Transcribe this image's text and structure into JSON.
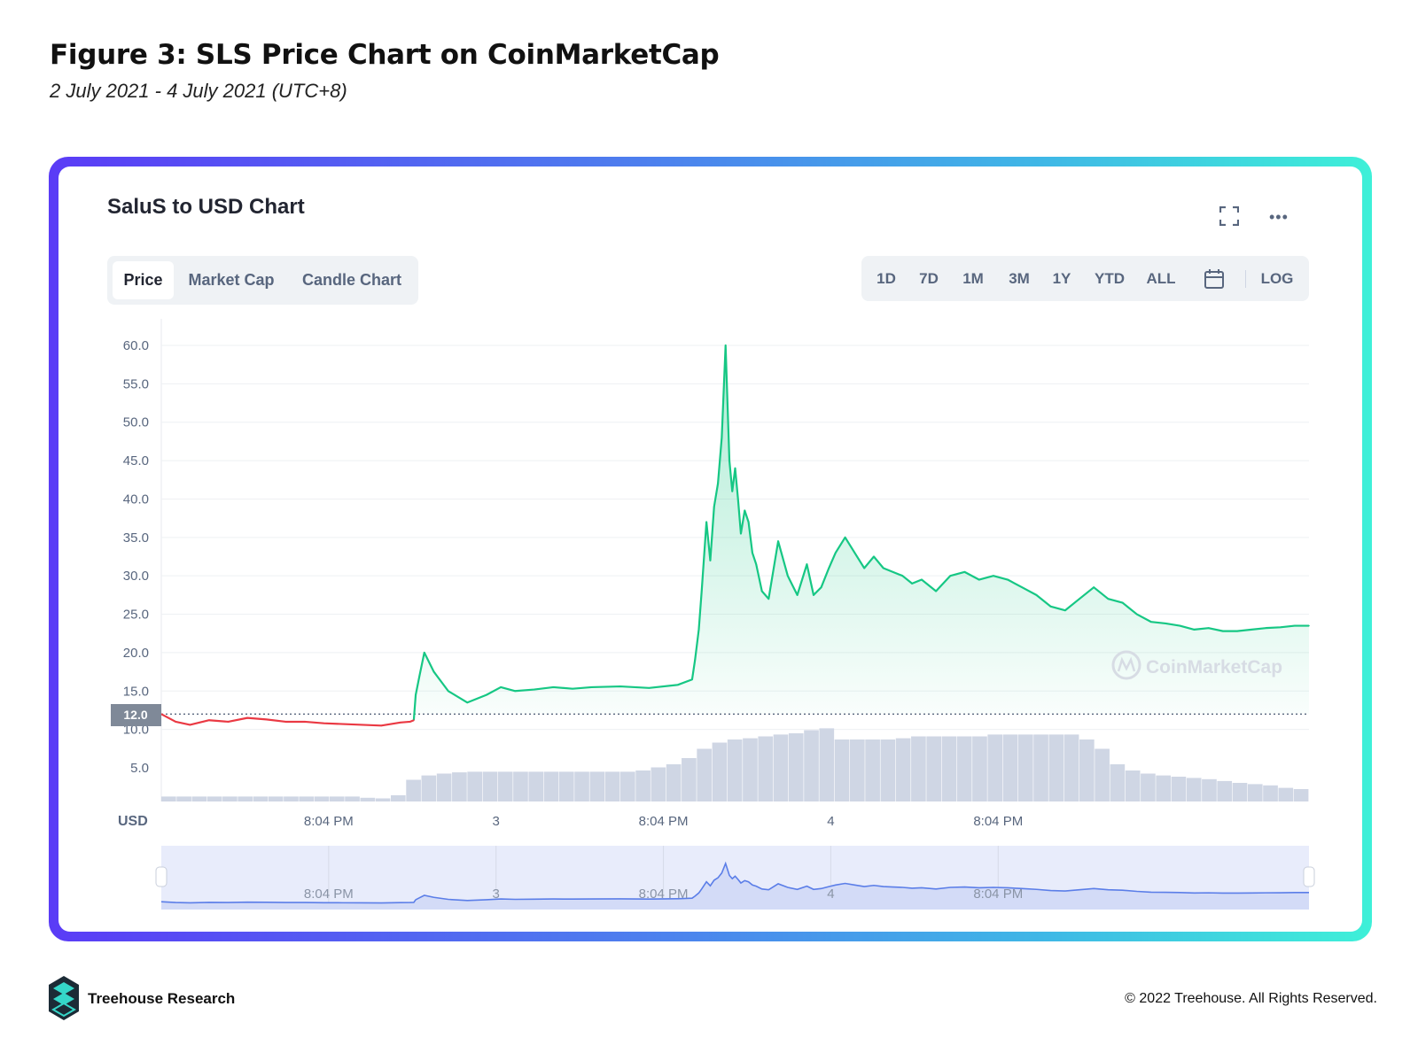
{
  "figure": {
    "title": "Figure 3: SLS Price Chart on CoinMarketCap",
    "subtitle": "2 July 2021 - 4 July 2021 (UTC+8)"
  },
  "panel": {
    "title": "SaluS to USD Chart",
    "expand_icon": "expand-icon",
    "more_icon": "more-icon",
    "tabs": [
      {
        "label": "Price",
        "active": true
      },
      {
        "label": "Market Cap",
        "active": false
      },
      {
        "label": "Candle Chart",
        "active": false
      }
    ],
    "ranges": [
      "1D",
      "7D",
      "1M",
      "3M",
      "1Y",
      "YTD",
      "ALL"
    ],
    "calendar_icon": "calendar-icon",
    "log_label": "LOG"
  },
  "colors": {
    "up": "#16c784",
    "down": "#ea3943",
    "volume": "#cfd6e4",
    "navigator": "#5b7ee8",
    "frame_start": "#5a3cf6",
    "frame_end": "#3ef0d8"
  },
  "chart_data": {
    "type": "line",
    "unit_label": "USD",
    "ylim": [
      0,
      62
    ],
    "yticks": [
      "5.0",
      "10.0",
      "15.0",
      "20.0",
      "25.0",
      "30.0",
      "35.0",
      "40.0",
      "45.0",
      "50.0",
      "55.0",
      "60.0"
    ],
    "xtick_labels": [
      "8:04 PM",
      "3",
      "8:04 PM",
      "4",
      "8:04 PM"
    ],
    "reference_price": "12.0",
    "watermark": "CoinMarketCap",
    "price_series": {
      "x": [
        0,
        0.15,
        0.3,
        0.5,
        0.7,
        0.9,
        1.1,
        1.3,
        1.5,
        1.7,
        1.9,
        2.1,
        2.3,
        2.5,
        2.6,
        2.64,
        2.66,
        2.7,
        2.75,
        2.85,
        3.0,
        3.2,
        3.4,
        3.55,
        3.7,
        3.9,
        4.1,
        4.3,
        4.5,
        4.8,
        5.1,
        5.4,
        5.55,
        5.58,
        5.62,
        5.65,
        5.7,
        5.74,
        5.78,
        5.82,
        5.86,
        5.9,
        5.94,
        5.97,
        6.0,
        6.03,
        6.06,
        6.1,
        6.14,
        6.18,
        6.22,
        6.28,
        6.35,
        6.45,
        6.55,
        6.65,
        6.75,
        6.82,
        6.9,
        6.98,
        7.05,
        7.15,
        7.25,
        7.35,
        7.45,
        7.55,
        7.65,
        7.75,
        7.85,
        7.95,
        8.1,
        8.25,
        8.4,
        8.55,
        8.7,
        8.85,
        9.0,
        9.15,
        9.3,
        9.45,
        9.6,
        9.75,
        9.9,
        10.05,
        10.2,
        10.35,
        10.5,
        10.65,
        10.8,
        10.95,
        11.1,
        11.25,
        11.4,
        11.55,
        11.7,
        11.85,
        12.0
      ],
      "y": [
        12.0,
        11.0,
        10.6,
        11.2,
        11.0,
        11.5,
        11.3,
        11.0,
        11.0,
        10.8,
        10.7,
        10.6,
        10.5,
        10.9,
        11.0,
        11.2,
        14.5,
        17.0,
        20.0,
        17.5,
        15.0,
        13.5,
        14.5,
        15.5,
        15.0,
        15.2,
        15.5,
        15.3,
        15.5,
        15.6,
        15.4,
        15.8,
        16.5,
        19.0,
        23.0,
        28.0,
        37.0,
        32.0,
        39.0,
        42.0,
        48.0,
        60.0,
        45.0,
        41.0,
        44.0,
        40.0,
        35.5,
        38.5,
        37.0,
        33.0,
        31.5,
        28.0,
        27.0,
        34.5,
        30.0,
        27.5,
        31.5,
        27.5,
        28.5,
        31.0,
        33.0,
        35.0,
        33.0,
        31.0,
        32.5,
        31.0,
        30.5,
        30.0,
        29.0,
        29.5,
        28.0,
        30.0,
        30.5,
        29.5,
        30.0,
        29.5,
        28.5,
        27.5,
        26.0,
        25.5,
        27.0,
        28.5,
        27.0,
        26.5,
        25.0,
        24.0,
        23.8,
        23.5,
        23.0,
        23.2,
        22.8,
        22.8,
        23.0,
        23.2,
        23.3,
        23.5,
        23.5
      ]
    },
    "volume_relative": [
      0.08,
      0.08,
      0.08,
      0.08,
      0.08,
      0.08,
      0.08,
      0.08,
      0.08,
      0.08,
      0.08,
      0.08,
      0.08,
      0.06,
      0.05,
      0.1,
      0.35,
      0.42,
      0.45,
      0.47,
      0.48,
      0.48,
      0.48,
      0.48,
      0.48,
      0.48,
      0.48,
      0.48,
      0.48,
      0.48,
      0.48,
      0.5,
      0.55,
      0.6,
      0.7,
      0.85,
      0.95,
      1.0,
      1.02,
      1.05,
      1.08,
      1.1,
      1.15,
      1.18,
      1.0,
      1.0,
      1.0,
      1.0,
      1.02,
      1.05,
      1.05,
      1.05,
      1.05,
      1.05,
      1.08,
      1.08,
      1.08,
      1.08,
      1.08,
      1.08,
      1.0,
      0.85,
      0.6,
      0.5,
      0.45,
      0.42,
      0.4,
      0.38,
      0.36,
      0.33,
      0.3,
      0.28,
      0.26,
      0.22,
      0.2
    ]
  },
  "footer": {
    "brand": "Treehouse Research",
    "logo_icon": "treehouse-logo-icon",
    "copyright": "© 2022 Treehouse. All Rights Reserved."
  }
}
